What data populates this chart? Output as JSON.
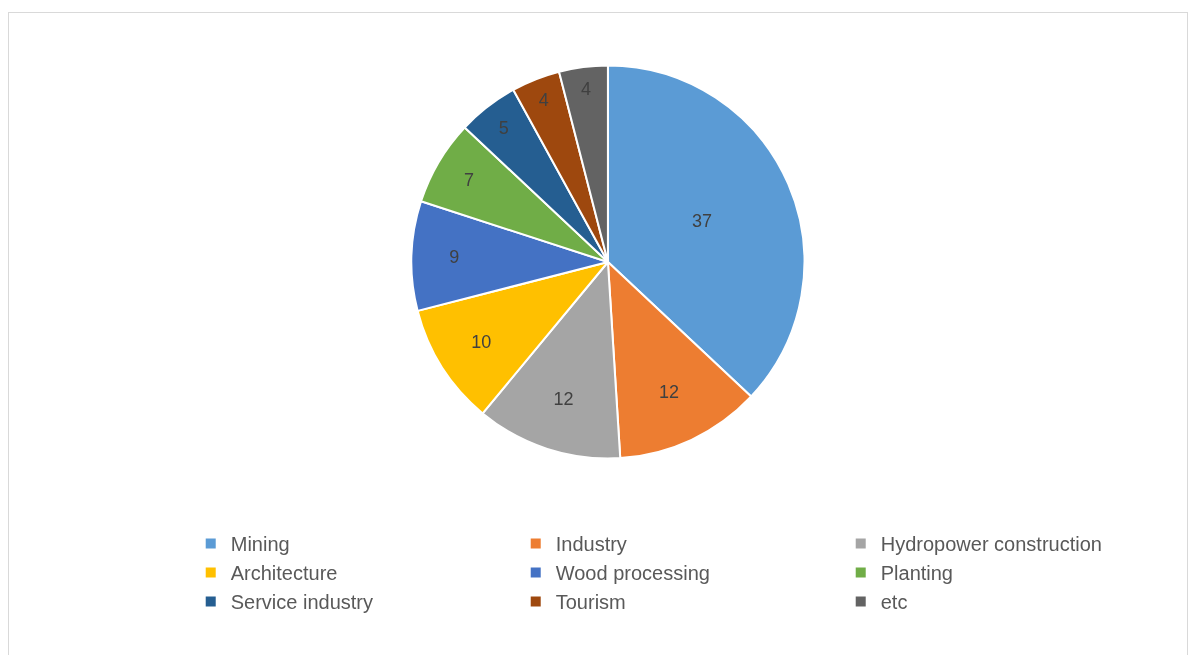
{
  "chart_data": {
    "type": "pie",
    "categories": [
      "Mining",
      "Industry",
      "Hydropower construction",
      "Architecture",
      "Wood processing",
      "Planting",
      "Service industry",
      "Tourism",
      "etc"
    ],
    "values": [
      37,
      12,
      12,
      10,
      9,
      7,
      5,
      4,
      4
    ],
    "colors": [
      "#5b9bd5",
      "#ed7d31",
      "#a5a5a5",
      "#ffc000",
      "#4472c4",
      "#70ad47",
      "#255e91",
      "#9e480e",
      "#636363"
    ],
    "data_labels": true,
    "legend": "bottom"
  }
}
